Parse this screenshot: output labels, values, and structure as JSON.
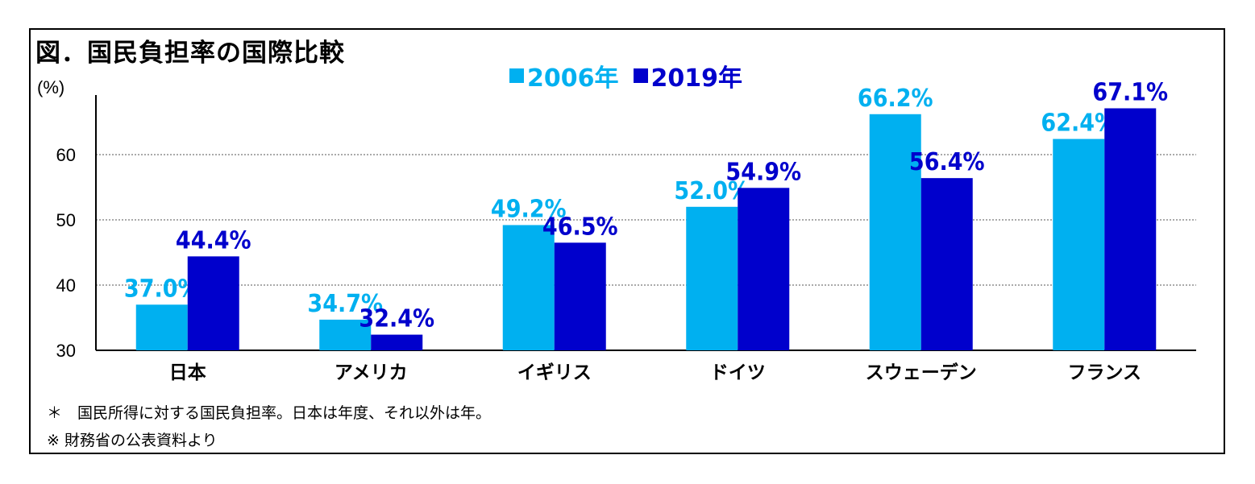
{
  "chart_data": {
    "type": "bar",
    "title": "図．国民負担率の国際比較",
    "ylabel": "(%)",
    "xlabel": "",
    "ylim": [
      30,
      70
    ],
    "yticks": [
      30,
      40,
      50,
      60
    ],
    "grid": true,
    "legend_position": "top-center",
    "categories": [
      "日本",
      "アメリカ",
      "イギリス",
      "ドイツ",
      "スウェーデン",
      "フランス"
    ],
    "series": [
      {
        "name": "2006年",
        "color": "#00b0f0",
        "values": [
          37.0,
          34.7,
          49.2,
          52.0,
          66.2,
          62.4
        ],
        "labels": [
          "37.0%",
          "34.7%",
          "49.2%",
          "52.0%",
          "66.2%",
          "62.4%"
        ]
      },
      {
        "name": "2019年",
        "color": "#0000cc",
        "values": [
          44.4,
          32.4,
          46.5,
          54.9,
          56.4,
          67.1
        ],
        "labels": [
          "44.4%",
          "32.4%",
          "46.5%",
          "54.9%",
          "56.4%",
          "67.1%"
        ]
      }
    ]
  },
  "legend": {
    "item1": "2006年",
    "item2": "2019年"
  },
  "notes": {
    "line1": "＊　国民所得に対する国民負担率。日本は年度、それ以外は年。",
    "line2": "※ 財務省の公表資料より"
  }
}
